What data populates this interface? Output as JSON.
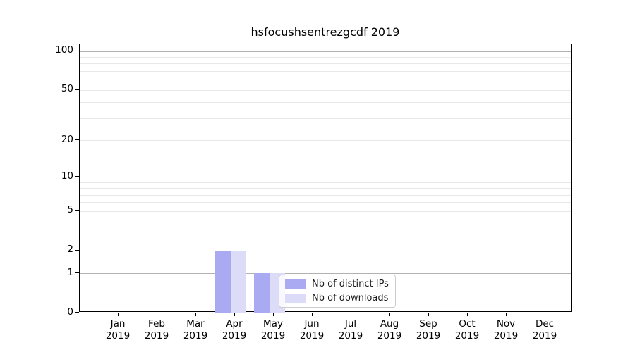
{
  "chart_data": {
    "type": "bar",
    "title": "hsfocushsentrezgcdf 2019",
    "year": "2019",
    "categories": [
      "Jan",
      "Feb",
      "Mar",
      "Apr",
      "May",
      "Jun",
      "Jul",
      "Aug",
      "Sep",
      "Oct",
      "Nov",
      "Dec"
    ],
    "series": [
      {
        "name": "Nb of distinct IPs",
        "color": "#aaaaf2",
        "values": [
          0,
          0,
          0,
          2,
          1,
          0,
          0,
          0,
          0,
          0,
          0,
          0
        ]
      },
      {
        "name": "Nb of downloads",
        "color": "#dcdcf8",
        "values": [
          0,
          0,
          0,
          2,
          1,
          0,
          0,
          0,
          0,
          0,
          0,
          0
        ]
      }
    ],
    "y_scale": "log1p",
    "ylim": [
      0,
      112
    ],
    "y_ticks": [
      0,
      1,
      2,
      5,
      10,
      20,
      50,
      100
    ],
    "y_major_gridlines": [
      1,
      10,
      100
    ],
    "y_minor_gridlines": [
      2,
      3,
      4,
      5,
      6,
      7,
      8,
      9,
      20,
      30,
      40,
      50,
      60,
      70,
      80,
      90
    ],
    "grid": "on",
    "legend_position": "lower center",
    "colors": {
      "major_grid": "#b2b2b2",
      "minor_grid": "#e8e8e8",
      "axis": "#000000",
      "legend_border": "#cccccc"
    }
  }
}
